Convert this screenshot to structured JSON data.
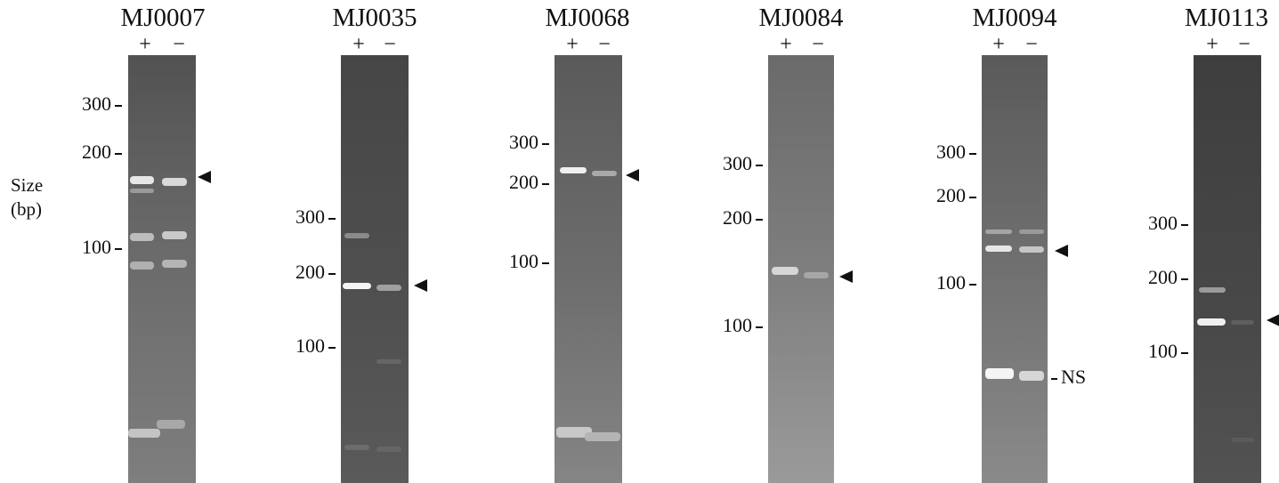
{
  "axis_label": {
    "line1": "Size",
    "line2": "(bp)"
  },
  "lane_labels": {
    "plus": "+",
    "minus": "−"
  },
  "ns_label": "NS",
  "colors": {
    "gel_dark": "#4a4a4a",
    "gel_mid": "#6a6a6a",
    "gel_light": "#8c8c8c",
    "band": "#f2f2f2",
    "ink": "#111111"
  },
  "panels": [
    {
      "name": "MJ0007",
      "markers": [
        "300",
        "200",
        "100"
      ]
    },
    {
      "name": "MJ0035",
      "markers": [
        "300",
        "200",
        "100"
      ]
    },
    {
      "name": "MJ0068",
      "markers": [
        "300",
        "200",
        "100"
      ]
    },
    {
      "name": "MJ0084",
      "markers": [
        "300",
        "200",
        "100"
      ]
    },
    {
      "name": "MJ0094",
      "markers": [
        "300",
        "200",
        "100"
      ]
    },
    {
      "name": "MJ0113",
      "markers": [
        "300",
        "200",
        "100"
      ]
    }
  ]
}
